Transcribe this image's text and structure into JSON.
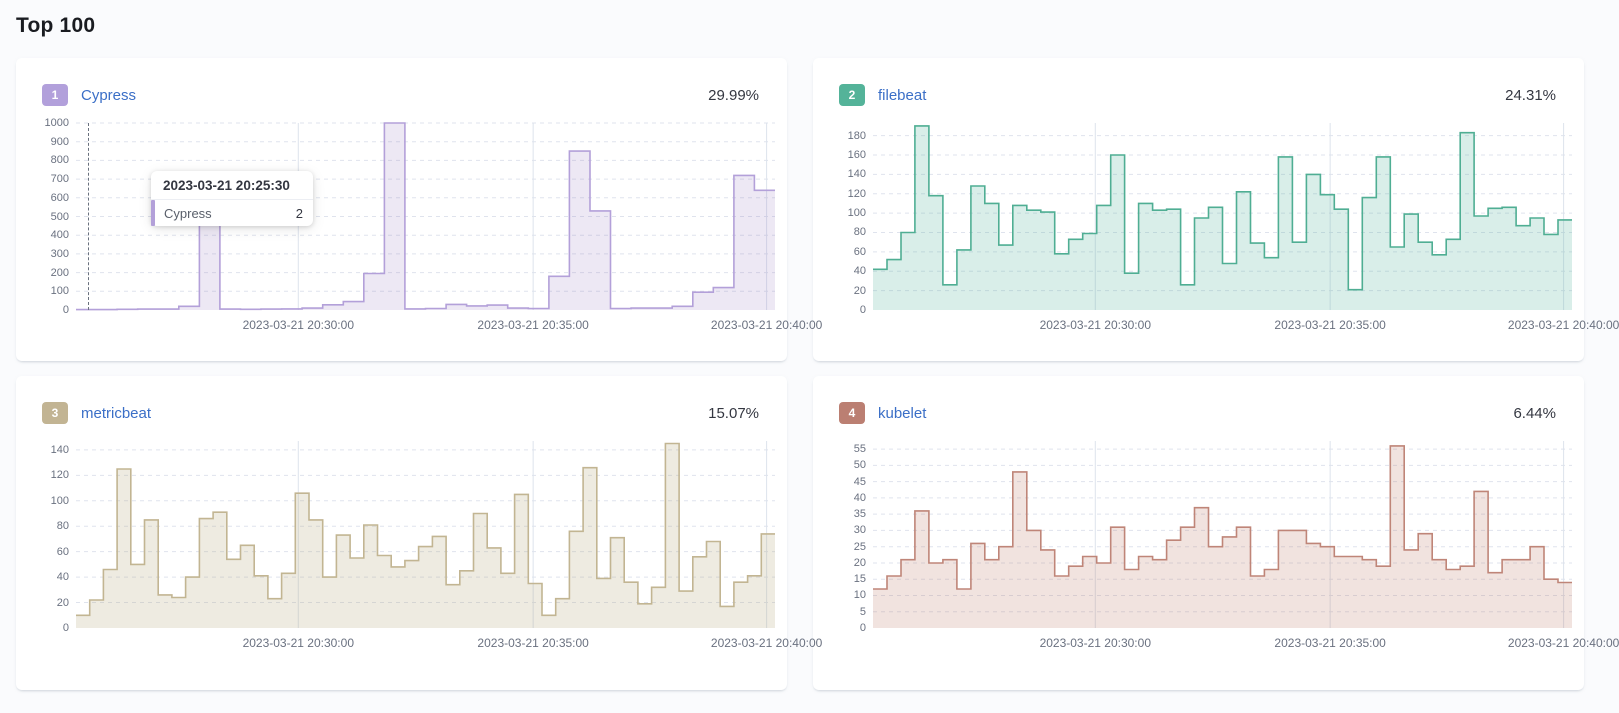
{
  "page": {
    "title": "Top 100"
  },
  "colors": {
    "page_background": "#fafbfd",
    "card_background": "#ffffff",
    "link_blue": "#3b6fc7",
    "text_dark": "#343741",
    "axis_text": "#6a7180",
    "grid_horizontal": "#dfe3ed",
    "grid_vertical": "#dde3ec",
    "cursor": "#69707d"
  },
  "cards": [
    {
      "rank": "1",
      "name": "Cypress",
      "percent": "29.99%",
      "badge_color": "#b2a0db"
    },
    {
      "rank": "2",
      "name": "filebeat",
      "percent": "24.31%",
      "badge_color": "#54b399"
    },
    {
      "rank": "3",
      "name": "metricbeat",
      "percent": "15.07%",
      "badge_color": "#c2b493"
    },
    {
      "rank": "4",
      "name": "kubelet",
      "percent": "6.44%",
      "badge_color": "#bb7f72"
    }
  ],
  "chart_data": [
    {
      "type": "area",
      "title": "Cypress",
      "series": [
        {
          "name": "Cypress",
          "values": [
            2,
            2,
            4,
            5,
            5,
            20,
            560,
            5,
            4,
            5,
            6,
            10,
            28,
            45,
            195,
            1000,
            6,
            8,
            30,
            22,
            26,
            10,
            8,
            180,
            850,
            530,
            8,
            10,
            10,
            20,
            95,
            120,
            720,
            640
          ]
        }
      ],
      "ylim": [
        0,
        1000
      ],
      "yticks": [
        0,
        100,
        200,
        300,
        400,
        500,
        600,
        700,
        800,
        900,
        1000
      ],
      "xticks": [
        {
          "label": "2023-03-21 20:30:00",
          "f": 0.318
        },
        {
          "label": "2023-03-21 20:35:00",
          "f": 0.654
        },
        {
          "label": "2023-03-21 20:40:00",
          "f": 0.988
        }
      ],
      "grid": true,
      "line_color": "#b3a0d9",
      "fill_color": "rgba(145,112,184,0.16)",
      "tooltip": {
        "header": "2023-03-21 20:25:30",
        "series_label": "Cypress",
        "value": "2",
        "cursor_f": 0.017
      }
    },
    {
      "type": "area",
      "title": "filebeat",
      "series": [
        {
          "name": "filebeat",
          "values": [
            42,
            52,
            80,
            190,
            118,
            26,
            62,
            128,
            110,
            67,
            108,
            103,
            101,
            58,
            73,
            79,
            108,
            160,
            38,
            110,
            103,
            104,
            26,
            95,
            106,
            48,
            122,
            69,
            54,
            158,
            70,
            140,
            119,
            104,
            21,
            116,
            158,
            65,
            99,
            70,
            57,
            73,
            183,
            97,
            105,
            106,
            87,
            95,
            78,
            93
          ]
        }
      ],
      "ylim": [
        0,
        193
      ],
      "yticks": [
        0,
        20,
        40,
        60,
        80,
        100,
        120,
        140,
        160,
        180
      ],
      "xticks": [
        {
          "label": "2023-03-21 20:30:00",
          "f": 0.318
        },
        {
          "label": "2023-03-21 20:35:00",
          "f": 0.654
        },
        {
          "label": "2023-03-21 20:40:00",
          "f": 0.988
        }
      ],
      "grid": true,
      "line_color": "#4fae93",
      "fill_color": "rgba(84,179,153,0.22)"
    },
    {
      "type": "area",
      "title": "metricbeat",
      "series": [
        {
          "name": "metricbeat",
          "values": [
            10,
            22,
            46,
            125,
            50,
            85,
            26,
            24,
            40,
            86,
            91,
            54,
            65,
            41,
            23,
            43,
            106,
            85,
            40,
            73,
            55,
            81,
            57,
            48,
            53,
            64,
            72,
            34,
            45,
            90,
            63,
            43,
            105,
            35,
            10,
            23,
            76,
            126,
            39,
            71,
            36,
            19,
            32,
            145,
            29,
            56,
            68,
            17,
            36,
            41,
            74
          ]
        }
      ],
      "ylim": [
        0,
        147
      ],
      "yticks": [
        0,
        20,
        40,
        60,
        80,
        100,
        120,
        140
      ],
      "xticks": [
        {
          "label": "2023-03-21 20:30:00",
          "f": 0.318
        },
        {
          "label": "2023-03-21 20:35:00",
          "f": 0.654
        },
        {
          "label": "2023-03-21 20:40:00",
          "f": 0.988
        }
      ],
      "grid": true,
      "line_color": "#c2b592",
      "fill_color": "rgba(178,163,119,0.22)"
    },
    {
      "type": "area",
      "title": "kubelet",
      "series": [
        {
          "name": "kubelet",
          "values": [
            12,
            16,
            21,
            36,
            20,
            21,
            12,
            26,
            21,
            25,
            48,
            30,
            24,
            16,
            19,
            22,
            20,
            31,
            18,
            22,
            21,
            27,
            31,
            37,
            25,
            28,
            31,
            16,
            18,
            30,
            30,
            26,
            25,
            22,
            22,
            21,
            19,
            56,
            24,
            29,
            21,
            18,
            19,
            42,
            17,
            21,
            21,
            25,
            15,
            14
          ]
        }
      ],
      "ylim": [
        0,
        57.5
      ],
      "yticks": [
        0,
        5,
        10,
        15,
        20,
        25,
        30,
        35,
        40,
        45,
        50,
        55
      ],
      "xticks": [
        {
          "label": "2023-03-21 20:30:00",
          "f": 0.318
        },
        {
          "label": "2023-03-21 20:35:00",
          "f": 0.654
        },
        {
          "label": "2023-03-21 20:40:00",
          "f": 0.988
        }
      ],
      "grid": true,
      "line_color": "#bf8578",
      "fill_color": "rgba(185,115,97,0.20)"
    }
  ]
}
